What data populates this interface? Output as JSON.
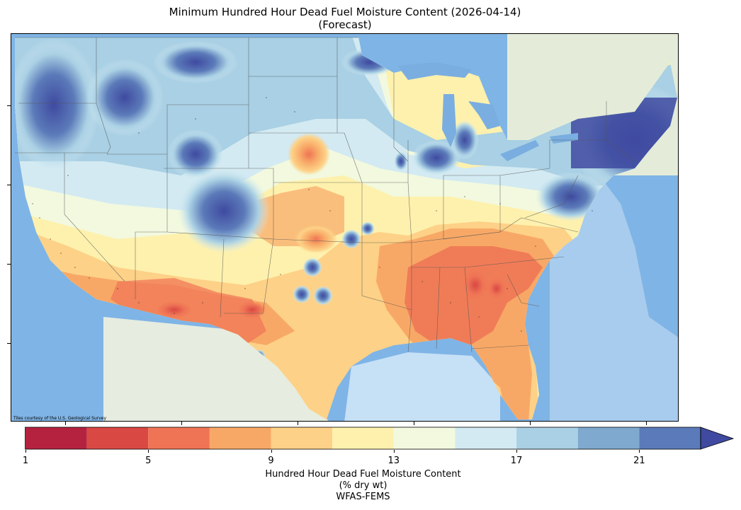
{
  "title": {
    "line1": "Minimum Hundred Hour Dead Fuel Moisture Content (2026-04-14)",
    "line2": "(Forecast)"
  },
  "map": {
    "region": "Contiguous United States",
    "basemap_credit": "Tiles courtesy of the U.S. Geological Survey",
    "colors": {
      "ocean": "#7fb4e6",
      "land_base": "#e8eee2",
      "lakes": "#7aaee0",
      "state_border": "#555555"
    }
  },
  "colorbar": {
    "ticks": [
      "1",
      "5",
      "9",
      "13",
      "17",
      "21"
    ],
    "tick_values": [
      1,
      5,
      9,
      13,
      17,
      21
    ],
    "min": 1,
    "max": 23,
    "extend": "max",
    "bins": [
      {
        "from": 1,
        "to": 3,
        "color": "#b5223f"
      },
      {
        "from": 3,
        "to": 5,
        "color": "#d94843"
      },
      {
        "from": 5,
        "to": 7,
        "color": "#ef7455"
      },
      {
        "from": 7,
        "to": 9,
        "color": "#f8a866"
      },
      {
        "from": 9,
        "to": 11,
        "color": "#fdd187"
      },
      {
        "from": 11,
        "to": 13,
        "color": "#fef1ad"
      },
      {
        "from": 13,
        "to": 15,
        "color": "#f2f9df"
      },
      {
        "from": 15,
        "to": 17,
        "color": "#d3eaf2"
      },
      {
        "from": 17,
        "to": 19,
        "color": "#a9d0e4"
      },
      {
        "from": 19,
        "to": 21,
        "color": "#7fa9cf"
      },
      {
        "from": 21,
        "to": 23,
        "color": "#5b7ab9"
      }
    ],
    "over_color": "#3f4aa0",
    "label_line1": "Hundred Hour Dead Fuel Moisture Content",
    "label_line2": "(% dry wt)",
    "label_line3": "WFAS-FEMS"
  }
}
